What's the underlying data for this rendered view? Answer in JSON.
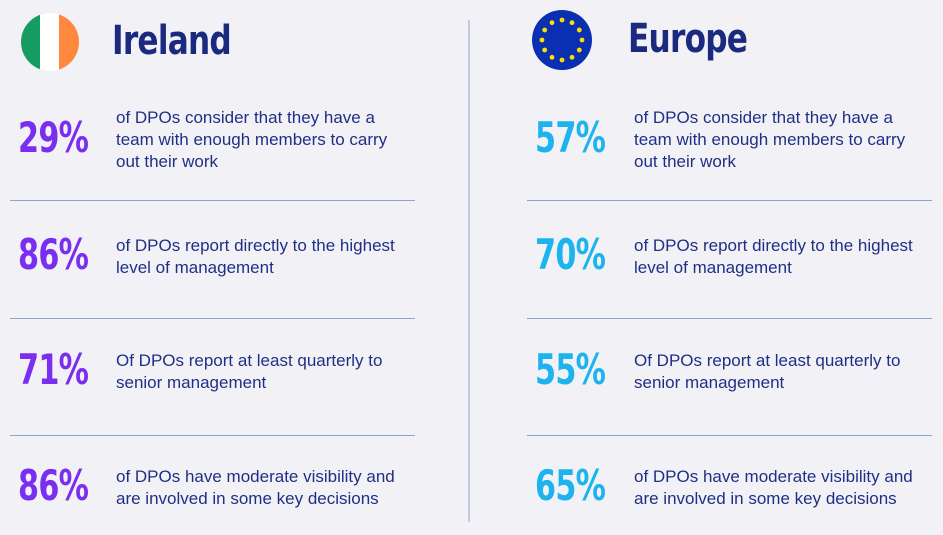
{
  "panels": [
    {
      "title": "Ireland",
      "stats": [
        {
          "value": "29%",
          "text": "of DPOs consider that they have a team with enough members to carry out their work"
        },
        {
          "value": "86%",
          "text": "of DPOs report directly to the highest level of management"
        },
        {
          "value": "71%",
          "text": "Of DPOs report at least quarterly to senior management"
        },
        {
          "value": "86%",
          "text": "of DPOs have moderate visibility and are involved in some key decisions"
        }
      ]
    },
    {
      "title": "Europe",
      "stats": [
        {
          "value": "57%",
          "text": "of DPOs consider that they have a team with enough members to carry out their work"
        },
        {
          "value": "70%",
          "text": "of DPOs report directly to the highest level of management"
        },
        {
          "value": "55%",
          "text": "Of DPOs report at least quarterly to senior management"
        },
        {
          "value": "65%",
          "text": "of DPOs have moderate visibility and are involved in some key decisions"
        }
      ]
    }
  ]
}
